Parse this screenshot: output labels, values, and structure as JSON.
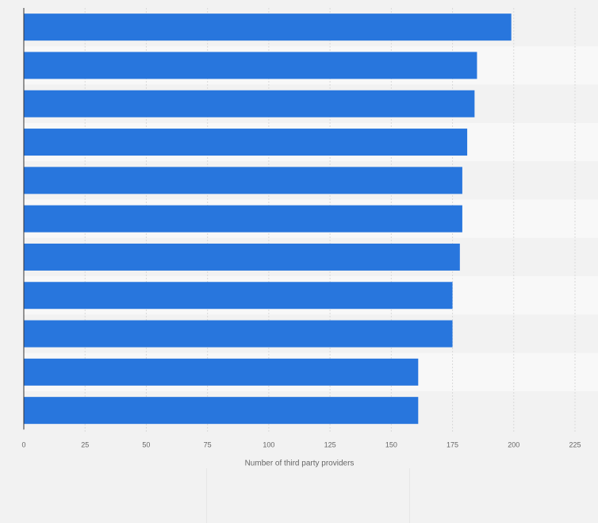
{
  "chart_data": {
    "type": "bar",
    "orientation": "horizontal",
    "title": "",
    "categories": [
      "",
      "",
      "",
      "",
      "",
      "",
      "",
      "",
      "",
      "",
      ""
    ],
    "values": [
      199,
      185,
      184,
      181,
      179,
      179,
      178,
      175,
      175,
      161,
      161
    ],
    "xlabel": "Number of third party providers",
    "ylabel": "",
    "xlim": [
      0,
      225
    ],
    "xticks": [
      0,
      25,
      50,
      75,
      100,
      125,
      150,
      175,
      200,
      225
    ],
    "grid": true,
    "legend": "none",
    "colors": {
      "bar": "#2876dd",
      "band_light": "#f8f8f8",
      "band_dark": "#f2f2f2",
      "grid": "#d9d9d9",
      "axis": "#333333"
    }
  }
}
